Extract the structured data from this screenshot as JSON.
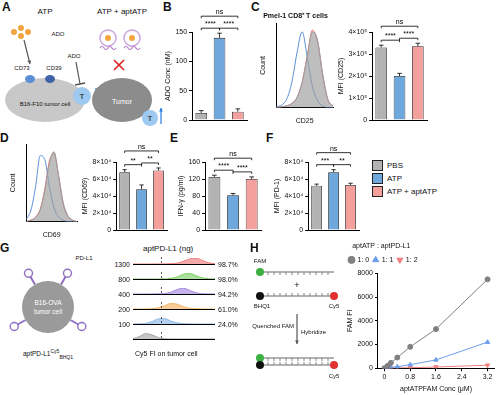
{
  "figure": {
    "panel_A": {
      "label": "A",
      "left_title": "ATP",
      "right_title": "ATP + aptATP",
      "cd73": "CD73",
      "cd39": "CD39",
      "ado": "ADO",
      "left_cell": "B16-F10 tumor cell",
      "right_cell": "Tumor",
      "t_cell": "T"
    },
    "panel_G_diagram": {
      "label": "G",
      "cell": "B16-OVA tumor cell",
      "receptor": "PD-L1",
      "probe": "aptPD-L1",
      "probe_sup": "Cy5",
      "probe_sub": "BHQ1"
    },
    "panel_H_diagram": {
      "label": "H",
      "dye": "FAM",
      "quencher": "BHQ1",
      "reporter": "Cy5",
      "plus": "+",
      "step": "Hybridize",
      "result": "Quenched FAM"
    }
  },
  "chart_data": [
    {
      "panel": "B",
      "type": "bar",
      "y_label": "ADO Conc (nM)",
      "categories": [
        "PBS",
        "ATP",
        "ATP + aptATP"
      ],
      "colors": [
        "#b3b3b3",
        "#6fa8dc",
        "#f4a09c"
      ],
      "values": [
        12,
        140,
        14
      ],
      "errors": [
        4,
        8,
        5
      ],
      "ylim": [
        0,
        150
      ],
      "yticks": [
        0,
        50,
        100,
        150
      ],
      "grid": false,
      "tick_labels": "y",
      "annotations": [
        {
          "from": 0,
          "to": 1,
          "text": "****"
        },
        {
          "from": 1,
          "to": 2,
          "text": "****"
        },
        {
          "from": 0,
          "to": 2,
          "text": "ns"
        }
      ]
    },
    {
      "panel": "C",
      "type": "line",
      "title": "Pmel-1 CD8⁺ T cells",
      "x_label": "CD25",
      "y_label": "Count",
      "categories": [
        null,
        null,
        null,
        null,
        null,
        null,
        null,
        null,
        null,
        null,
        null,
        null
      ],
      "ylim": [
        0,
        100
      ],
      "grid": false,
      "tick_labels": false,
      "series": [
        {
          "color": "#9e9e9e",
          "line_style": "filled",
          "values": [
            0,
            1,
            2,
            5,
            12,
            30,
            60,
            90,
            80,
            40,
            10,
            2
          ]
        },
        {
          "color": "#5b8fd9",
          "line_style": "solid",
          "values": [
            1,
            3,
            10,
            30,
            65,
            90,
            60,
            25,
            8,
            2,
            0,
            0
          ]
        },
        {
          "color": "#ee6a6a",
          "line_style": "solid",
          "values": [
            0,
            1,
            2,
            5,
            12,
            30,
            62,
            92,
            78,
            38,
            9,
            2
          ]
        }
      ]
    },
    {
      "type": "bar",
      "y_label": "MFI (CD25)",
      "categories": [
        "PBS",
        "ATP",
        "ATP + aptATP"
      ],
      "colors": [
        "#b3b3b3",
        "#6fa8dc",
        "#f4a09c"
      ],
      "values": [
        330000,
        200000,
        335000
      ],
      "errors": [
        10000,
        12000,
        14000
      ],
      "ylim": [
        0,
        400000
      ],
      "yticks": [
        0,
        {
          "value": 100000,
          "label": "1×10⁵"
        },
        {
          "value": 200000,
          "label": "2×10⁵"
        },
        {
          "value": 300000,
          "label": "3×10⁵"
        },
        {
          "value": 400000,
          "label": "4×10⁵"
        }
      ],
      "grid": false,
      "tick_labels": "y",
      "annotations": [
        {
          "from": 0,
          "to": 1,
          "text": "****"
        },
        {
          "from": 1,
          "to": 2,
          "text": "****"
        },
        {
          "from": 0,
          "to": 2,
          "text": "ns"
        }
      ]
    },
    {
      "panel": "D",
      "type": "line",
      "x_label": "CD69",
      "y_label": "Count",
      "categories": [
        null,
        null,
        null,
        null,
        null,
        null,
        null,
        null,
        null,
        null,
        null,
        null
      ],
      "ylim": [
        0,
        100
      ],
      "grid": false,
      "tick_labels": false,
      "series": [
        {
          "color": "#9e9e9e",
          "line_style": "filled",
          "values": [
            0,
            2,
            5,
            15,
            40,
            75,
            90,
            60,
            25,
            8,
            2,
            0
          ]
        },
        {
          "color": "#5b8fd9",
          "line_style": "solid",
          "values": [
            3,
            15,
            45,
            85,
            80,
            45,
            18,
            6,
            2,
            0,
            0,
            0
          ]
        },
        {
          "color": "#ee6a6a",
          "line_style": "solid",
          "values": [
            0,
            2,
            6,
            16,
            42,
            78,
            88,
            58,
            22,
            7,
            2,
            0
          ]
        }
      ]
    },
    {
      "type": "bar",
      "y_label": "MFI (CD69)",
      "categories": [
        "PBS",
        "ATP",
        "ATP + aptATP"
      ],
      "colors": [
        "#b3b3b3",
        "#6fa8dc",
        "#f4a09c"
      ],
      "values": [
        68000,
        48000,
        70000
      ],
      "errors": [
        3000,
        5000,
        3000
      ],
      "ylim": [
        0,
        80000
      ],
      "yticks": [
        0,
        {
          "value": 20000,
          "label": "2×10⁴"
        },
        {
          "value": 40000,
          "label": "4×10⁴"
        },
        {
          "value": 60000,
          "label": "6×10⁴"
        },
        {
          "value": 80000,
          "label": "8×10⁴"
        }
      ],
      "grid": false,
      "tick_labels": "y",
      "annotations": [
        {
          "from": 0,
          "to": 1,
          "text": "**"
        },
        {
          "from": 1,
          "to": 2,
          "text": "**"
        },
        {
          "from": 0,
          "to": 2,
          "text": "ns"
        }
      ]
    },
    {
      "panel": "E",
      "type": "bar",
      "y_label": "IFN-γ (pg/ml)",
      "categories": [
        "PBS",
        "ATP",
        "ATP + aptATP"
      ],
      "colors": [
        "#b3b3b3",
        "#6fa8dc",
        "#f4a09c"
      ],
      "values": [
        125,
        82,
        120
      ],
      "errors": [
        4,
        4,
        5
      ],
      "ylim": [
        0,
        160
      ],
      "yticks": [
        0,
        40,
        80,
        120,
        160
      ],
      "grid": false,
      "tick_labels": "y",
      "annotations": [
        {
          "from": 0,
          "to": 1,
          "text": "****"
        },
        {
          "from": 1,
          "to": 2,
          "text": "****"
        },
        {
          "from": 0,
          "to": 2,
          "text": "ns"
        }
      ]
    },
    {
      "panel": "F",
      "type": "bar",
      "y_label": "MFI (PD-1)",
      "categories": [
        "PBS",
        "ATP",
        "ATP + aptATP"
      ],
      "colors": [
        "#b3b3b3",
        "#6fa8dc",
        "#f4a09c"
      ],
      "values": [
        52000,
        68000,
        53000
      ],
      "errors": [
        2000,
        3000,
        2000
      ],
      "ylim": [
        0,
        80000
      ],
      "yticks": [
        0,
        {
          "value": 20000,
          "label": "2×10⁴"
        },
        {
          "value": 40000,
          "label": "4×10⁴"
        },
        {
          "value": 60000,
          "label": "6×10⁴"
        },
        {
          "value": 80000,
          "label": "8×10⁴"
        }
      ],
      "grid": false,
      "tick_labels": "y",
      "legend": "right",
      "annotations": [
        {
          "from": 0,
          "to": 1,
          "text": "***"
        },
        {
          "from": 1,
          "to": 2,
          "text": "**"
        },
        {
          "from": 0,
          "to": 2,
          "text": "ns"
        }
      ]
    },
    {
      "type": "line",
      "title": "aptPD-L1 (ng)",
      "x_label": "Cy5 FI on tumor cell",
      "categories": [
        null,
        null,
        null,
        null,
        null,
        null,
        null,
        null,
        null,
        null,
        null,
        null,
        null,
        null
      ],
      "ylim": [
        0,
        100
      ],
      "gate": 4.5,
      "grid": false,
      "tick_labels": false,
      "series": [
        {
          "name": "1300",
          "color": "#f07f7f",
          "line_style": "filled",
          "gated_label": "98.7%",
          "values": [
            0,
            0,
            0,
            0,
            1,
            2,
            5,
            15,
            45,
            85,
            95,
            60,
            20,
            5
          ]
        },
        {
          "name": "800",
          "color": "#7fcf6a",
          "line_style": "filled",
          "gated_label": "98.0%",
          "values": [
            0,
            0,
            0,
            0,
            1,
            3,
            10,
            35,
            80,
            95,
            55,
            20,
            5,
            1
          ]
        },
        {
          "name": "400",
          "color": "#a98be0",
          "line_style": "filled",
          "gated_label": "94.2%",
          "values": [
            0,
            0,
            0,
            1,
            3,
            8,
            30,
            75,
            95,
            60,
            20,
            5,
            1,
            0
          ]
        },
        {
          "name": "200",
          "color": "#f3b46a",
          "line_style": "filled",
          "gated_label": "61.0%",
          "values": [
            0,
            0,
            1,
            5,
            20,
            55,
            90,
            80,
            40,
            12,
            3,
            1,
            0,
            0
          ]
        },
        {
          "name": "100",
          "color": "#8fb8e8",
          "line_style": "filled",
          "gated_label": "24.0%",
          "values": [
            0,
            2,
            10,
            40,
            85,
            90,
            50,
            20,
            6,
            2,
            0,
            0,
            0,
            0
          ]
        },
        {
          "color": "#a8a8a8",
          "line_style": "filled",
          "values": [
            5,
            40,
            90,
            70,
            25,
            6,
            1,
            0,
            0,
            0,
            0,
            0,
            0,
            0
          ]
        }
      ]
    },
    {
      "type": "line",
      "x_label": "aptATPFAM Conc (μM)",
      "y_label": "FAM FI",
      "x": [
        0,
        0.1,
        0.2,
        0.4,
        0.8,
        1.6,
        3.2
      ],
      "xlim": [
        -0.2,
        3.4
      ],
      "xticks": [
        0,
        0.8,
        1.6,
        2.4,
        3.2
      ],
      "ylim": [
        0,
        8000
      ],
      "yticks": [
        0,
        2000,
        4000,
        6000,
        8000
      ],
      "grid": false,
      "legend": "top",
      "legend_title": "aptATP : aptPD-L1",
      "series": [
        {
          "name": "1: 0",
          "color": "#808080",
          "marker": "circle",
          "values": [
            0,
            200,
            450,
            900,
            1800,
            3300,
            7500
          ]
        },
        {
          "name": "1: 1",
          "color": "#6d9eeb",
          "marker": "triangle",
          "values": [
            0,
            30,
            60,
            120,
            300,
            700,
            2200
          ]
        },
        {
          "name": "1: 2",
          "color": "#f08080",
          "marker": "triangle-down",
          "values": [
            0,
            0,
            10,
            20,
            40,
            100,
            250
          ]
        }
      ]
    }
  ]
}
